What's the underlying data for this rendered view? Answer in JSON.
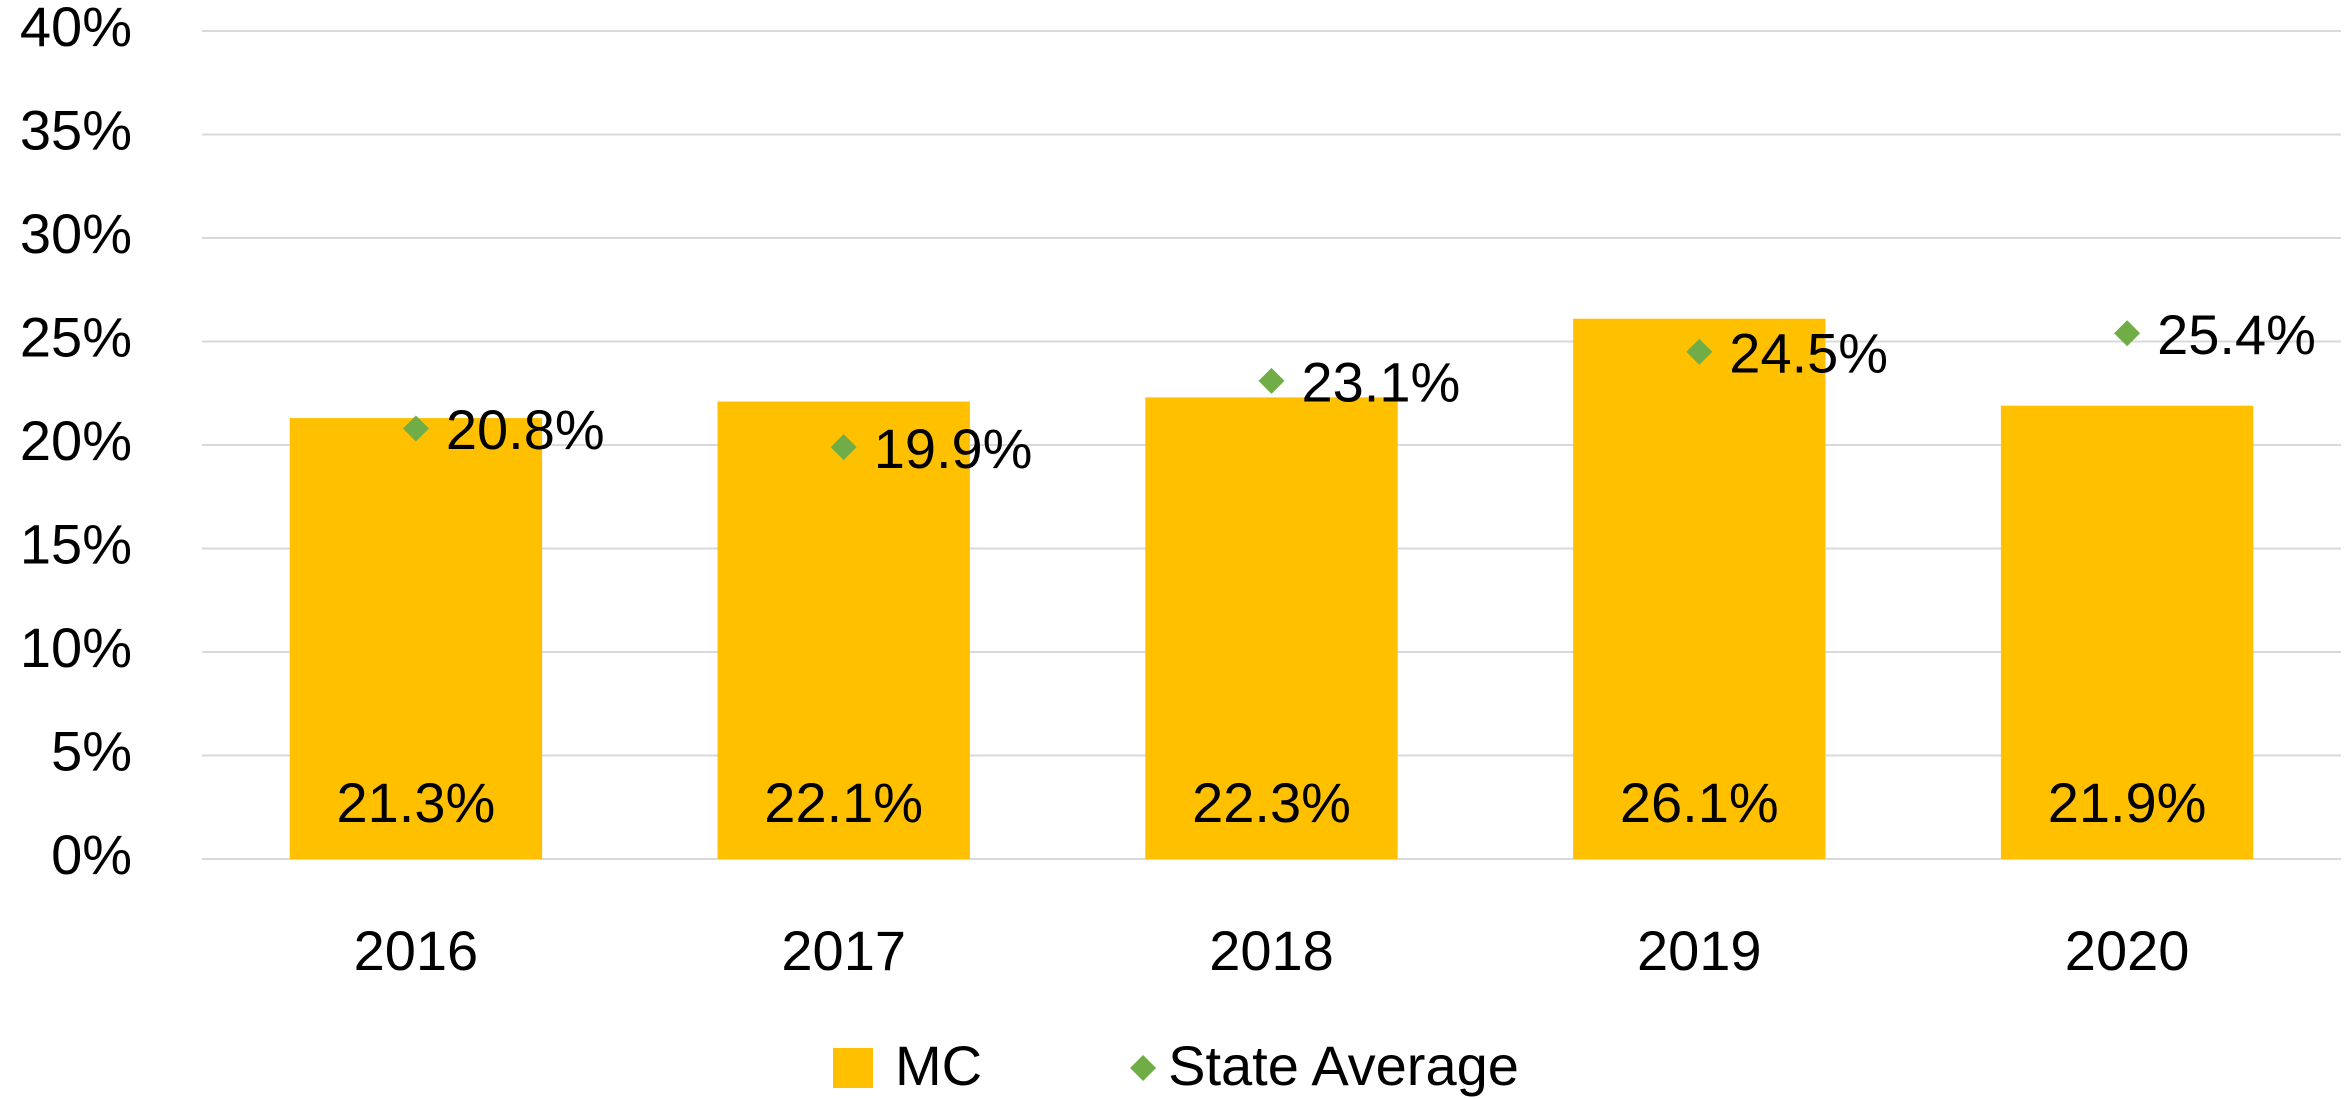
{
  "chart_data": {
    "type": "bar",
    "categories": [
      "2016",
      "2017",
      "2018",
      "2019",
      "2020"
    ],
    "series": [
      {
        "name": "MC",
        "color": "#FFC000",
        "type": "bar",
        "values": [
          21.3,
          22.1,
          22.3,
          26.1,
          21.9
        ],
        "value_labels": [
          "21.3%",
          "22.1%",
          "22.3%",
          "26.1%",
          "21.9%"
        ]
      },
      {
        "name": "State Average",
        "color": "#70AD47",
        "type": "scatter",
        "values": [
          20.8,
          19.9,
          23.1,
          24.5,
          25.4
        ],
        "value_labels": [
          "20.8%",
          "19.9%",
          "23.1%",
          "24.5%",
          "25.4%"
        ]
      }
    ],
    "ylim": [
      0,
      40
    ],
    "yticks": [
      {
        "value": 0,
        "label": "0%"
      },
      {
        "value": 5,
        "label": "5%"
      },
      {
        "value": 10,
        "label": "10%"
      },
      {
        "value": 15,
        "label": "15%"
      },
      {
        "value": 20,
        "label": "20%"
      },
      {
        "value": 25,
        "label": "25%"
      },
      {
        "value": 30,
        "label": "30%"
      },
      {
        "value": 35,
        "label": "35%"
      },
      {
        "value": 40,
        "label": "40%"
      }
    ],
    "grid": true,
    "legend": "bottom"
  }
}
